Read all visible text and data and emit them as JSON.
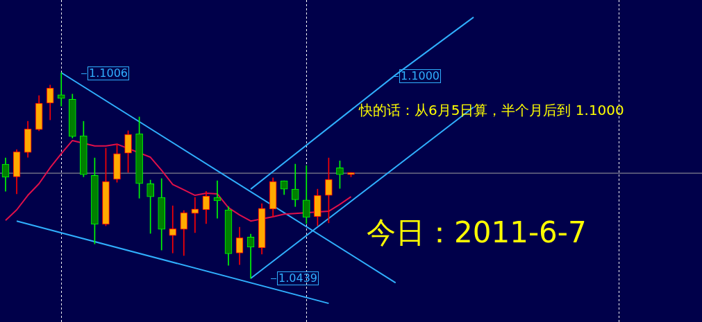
{
  "chart_data": {
    "type": "candlestick",
    "categories": [
      null,
      null,
      null,
      null,
      null,
      null,
      null,
      null,
      null,
      null,
      null,
      null,
      null,
      null,
      null,
      null,
      null,
      null,
      null,
      null,
      null,
      null,
      null,
      null,
      null,
      null,
      null,
      null,
      null,
      null,
      null,
      null,
      null,
      null,
      null,
      null,
      null,
      null,
      null,
      null,
      null,
      null,
      null,
      null,
      null,
      null,
      null,
      null,
      null,
      null,
      null,
      null,
      null,
      null,
      null,
      null,
      null,
      null,
      null,
      null,
      null,
      null,
      null
    ],
    "ohlc": [
      [
        1.0754,
        1.0771,
        1.0679,
        1.0718
      ],
      [
        1.0719,
        1.0794,
        1.0672,
        1.0788
      ],
      [
        1.0786,
        1.0872,
        1.0773,
        1.0851
      ],
      [
        1.0849,
        1.0943,
        1.0846,
        1.0922
      ],
      [
        1.0922,
        1.0972,
        1.0876,
        1.0964
      ],
      [
        1.0945,
        1.1006,
        1.0914,
        1.0935
      ],
      [
        1.0933,
        1.0947,
        1.0826,
        1.083
      ],
      [
        1.0832,
        1.0872,
        1.0719,
        1.0725
      ],
      [
        1.0723,
        1.0771,
        1.0534,
        1.0588
      ],
      [
        1.0588,
        1.0798,
        1.0584,
        1.0706
      ],
      [
        1.0712,
        1.0809,
        1.0704,
        1.0783
      ],
      [
        1.0784,
        1.0846,
        1.0731,
        1.0836
      ],
      [
        1.0838,
        1.0884,
        1.066,
        1.07
      ],
      [
        1.07,
        1.071,
        1.0563,
        1.0664
      ],
      [
        1.0662,
        1.0714,
        1.0517,
        1.0574
      ],
      [
        1.0557,
        1.0639,
        1.0509,
        1.0576
      ],
      [
        1.0574,
        1.0626,
        1.0502,
        1.062
      ],
      [
        1.0618,
        1.0662,
        1.0565,
        1.063
      ],
      [
        1.0628,
        1.0679,
        1.059,
        1.0666
      ],
      [
        1.0662,
        1.0708,
        1.0605,
        1.0653
      ],
      [
        1.0628,
        1.0637,
        1.0475,
        1.0507
      ],
      [
        1.0509,
        1.058,
        1.0477,
        1.0551
      ],
      [
        1.0553,
        1.0561,
        1.0439,
        1.0525
      ],
      [
        1.0523,
        1.0645,
        1.0506,
        1.0632
      ],
      [
        1.063,
        1.0716,
        1.0609,
        1.0706
      ],
      [
        1.0708,
        1.0708,
        1.067,
        1.0685
      ],
      [
        1.0685,
        1.0754,
        1.0637,
        1.0656
      ],
      [
        1.0655,
        1.075,
        1.059,
        1.0607
      ],
      [
        1.0609,
        1.0685,
        1.0584,
        1.0668
      ],
      [
        1.0668,
        1.0771,
        1.0592,
        1.0712
      ],
      [
        1.0744,
        1.0763,
        1.0687,
        1.0725
      ],
      [
        1.0725,
        1.0731,
        1.0719,
        1.0729
      ],
      null,
      null,
      null,
      null,
      null,
      null,
      null,
      null,
      null,
      null,
      null,
      null,
      null,
      null,
      null,
      null,
      null,
      null,
      null,
      null,
      null,
      null,
      null,
      null,
      null,
      null,
      null,
      null,
      null,
      null,
      null
    ],
    "colors": [
      "#00ff00",
      "#ff0000",
      "#ff0000",
      "#ff0000",
      "#ff0000",
      "#00ff00",
      "#00ff00",
      "#00ff00",
      "#00ff00",
      "#ff0000",
      "#ff0000",
      "#ff0000",
      "#00ff00",
      "#00ff00",
      "#00ff00",
      "#ff0000",
      "#ff0000",
      "#ff0000",
      "#ff0000",
      "#00ff00",
      "#00ff00",
      "#ff0000",
      "#00ff00",
      "#ff0000",
      "#ff0000",
      "#00ff00",
      "#00ff00",
      "#00ff00",
      "#ff0000",
      "#ff0000",
      "#00ff00",
      "#ff0000",
      null,
      null,
      null,
      null,
      null,
      null,
      null,
      null,
      null,
      null,
      null,
      null,
      null,
      null,
      null,
      null,
      null,
      null,
      null,
      null,
      null,
      null,
      null,
      null,
      null,
      null,
      null,
      null,
      null,
      null,
      null
    ],
    "series": [
      {
        "type": "line",
        "color": "#e0104a",
        "values": [
          1.0599,
          1.0628,
          1.0668,
          1.07,
          1.0744,
          1.0783,
          1.0819,
          null,
          1.0804,
          1.0804,
          1.0809,
          null,
          null,
          1.0773,
          1.0737,
          1.0698,
          1.0683,
          1.0668,
          1.0674,
          1.0672,
          1.0634,
          1.0614,
          1.0597,
          null,
          1.0609,
          1.0616,
          1.0618,
          null,
          null,
          1.0624,
          1.0643,
          1.0664,
          null,
          null,
          null,
          null,
          null,
          null,
          null,
          null,
          null,
          null,
          null,
          null,
          null,
          null,
          null,
          null,
          null,
          null,
          null,
          null,
          null,
          null,
          null,
          null,
          null,
          null,
          null,
          null,
          null,
          null,
          null
        ]
      },
      {
        "type": "line",
        "color": "#30b0ff",
        "values": [
          null,
          null,
          null,
          null,
          null,
          1.1006,
          null,
          null,
          null,
          null,
          null,
          null,
          null,
          null,
          null,
          null,
          null,
          null,
          null,
          null,
          null,
          null,
          null,
          null,
          null,
          null,
          null,
          null,
          null,
          null,
          null,
          null,
          null,
          null,
          null,
          1.0427,
          null,
          null,
          null,
          null,
          null,
          null,
          null,
          null,
          null,
          null,
          null,
          null,
          null,
          null,
          null,
          null,
          null,
          null,
          null,
          null,
          null,
          null,
          null,
          null,
          null,
          null,
          null
        ]
      },
      {
        "type": "line",
        "color": "#30b0ff",
        "values": [
          null,
          1.0597,
          null,
          null,
          null,
          null,
          null,
          null,
          null,
          null,
          null,
          null,
          null,
          null,
          null,
          null,
          null,
          null,
          null,
          null,
          null,
          null,
          null,
          null,
          null,
          null,
          null,
          null,
          null,
          1.037,
          null,
          null,
          null,
          null,
          null,
          null,
          null,
          null,
          null,
          null,
          null,
          null,
          null,
          null,
          null,
          null,
          null,
          null,
          null,
          null,
          null,
          null,
          null,
          null,
          null,
          null,
          null,
          null,
          null,
          null,
          null,
          null,
          null
        ]
      },
      {
        "type": "line",
        "color": "#30b0ff",
        "values": [
          null,
          null,
          null,
          null,
          null,
          null,
          null,
          null,
          null,
          null,
          null,
          null,
          null,
          null,
          null,
          null,
          null,
          null,
          null,
          null,
          null,
          null,
          1.0685,
          null,
          null,
          null,
          null,
          null,
          null,
          null,
          null,
          null,
          null,
          null,
          null,
          1.1,
          null,
          null,
          null,
          null,
          null,
          null,
          1.1159,
          null,
          null,
          null,
          null,
          null,
          null,
          null,
          null,
          null,
          null,
          null,
          null,
          null,
          null,
          null,
          null,
          null,
          null,
          null,
          null
        ]
      },
      {
        "type": "line",
        "color": "#30b0ff",
        "values": [
          null,
          null,
          null,
          null,
          null,
          null,
          null,
          null,
          null,
          null,
          null,
          null,
          null,
          null,
          null,
          null,
          null,
          null,
          null,
          null,
          null,
          null,
          1.0439,
          null,
          null,
          null,
          null,
          null,
          null,
          null,
          null,
          null,
          null,
          null,
          null,
          null,
          null,
          null,
          null,
          null,
          null,
          null,
          1.0911,
          null,
          null,
          null,
          null,
          null,
          null,
          null,
          null,
          null,
          null,
          null,
          null,
          null,
          null,
          null,
          null,
          null,
          null,
          null,
          null
        ]
      }
    ],
    "ref_lines": [
      {
        "axis": "y",
        "value": 1.0729,
        "color": "#a0a0a0"
      }
    ],
    "annotations": [
      "1.1006",
      "1.1000",
      "1.0439",
      "快的话：从6月5日算，半个月后到 1.1000",
      "今日：2011-6-7"
    ],
    "grid": "x",
    "legend": false
  }
}
